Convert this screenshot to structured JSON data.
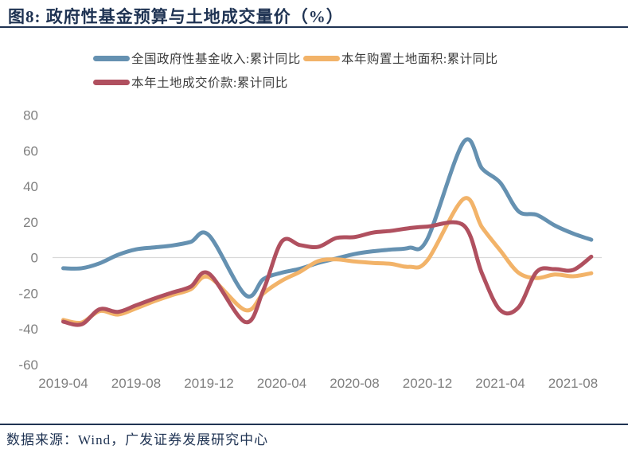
{
  "figure": {
    "title": "图8:  政府性基金预算与土地成交量价（%）",
    "source": "数据来源：Wind，广发证券发展研究中心"
  },
  "colors": {
    "navy": "#1F3353",
    "axis_gray": "#7F7F7F",
    "grid_gray": "#D9D9D9",
    "legend_text": "#3E3E3E",
    "series_blue": "#6591B1",
    "series_orange": "#F2B369",
    "series_red": "#B0505F"
  },
  "chart_data": {
    "type": "line",
    "title": "政府性基金预算与土地成交量价（%）",
    "x": [
      "2019-04",
      "2019-05",
      "2019-06",
      "2019-07",
      "2019-08",
      "2019-09",
      "2019-10",
      "2019-11",
      "2019-12",
      "2020-01",
      "2020-02",
      "2020-03",
      "2020-04",
      "2020-05",
      "2020-06",
      "2020-07",
      "2020-08",
      "2020-09",
      "2020-10",
      "2020-11",
      "2020-12",
      "2021-01",
      "2021-02",
      "2021-03",
      "2021-04",
      "2021-05",
      "2021-06",
      "2021-07",
      "2021-08",
      "2021-09"
    ],
    "series": [
      {
        "name": "全国政府性基金收入:累计同比",
        "color_key": "series_blue",
        "values": [
          -6,
          -6,
          -3.2,
          1.5,
          4.6,
          5.7,
          6.8,
          8.8,
          12.5,
          null,
          -21,
          -12,
          -8.5,
          -6.3,
          -3,
          -0.5,
          2,
          3.5,
          4.5,
          5.5,
          10.5,
          null,
          65,
          50,
          42,
          26,
          24,
          18,
          13.5,
          10
        ]
      },
      {
        "name": "本年购置土地面积:累计同比",
        "color_key": "series_orange",
        "values": [
          -35,
          -36.5,
          -30,
          -32,
          -28.5,
          -24.5,
          -21,
          -17.8,
          -11,
          null,
          -29.5,
          -20,
          -13,
          -8,
          -2,
          -1,
          -2.2,
          -3,
          -3.5,
          -5.2,
          -1.5,
          null,
          33,
          17,
          4,
          -8.5,
          -11.5,
          -9.5,
          -10.5,
          -8.8
        ]
      },
      {
        "name": "本年土地成交价款:累计同比",
        "color_key": "series_red",
        "values": [
          -36,
          -37.5,
          -29,
          -30.5,
          -26.8,
          -23,
          -19.6,
          -16.3,
          -9,
          null,
          -36.2,
          -18,
          9,
          7,
          6,
          11,
          11.5,
          14,
          15,
          16.5,
          17.4,
          null,
          18,
          -9,
          -29.5,
          -28,
          -8,
          -6.5,
          -7,
          0.5
        ]
      }
    ],
    "y_ticks": [
      80,
      60,
      40,
      20,
      0,
      -20,
      -40,
      -60
    ],
    "x_tick_labels": [
      "2019-04",
      "2019-08",
      "2019-12",
      "2020-04",
      "2020-08",
      "2020-12",
      "2021-04",
      "2021-08"
    ],
    "ylim": [
      -60,
      80
    ],
    "grid": "zero-line-only",
    "legend_position": "top-left",
    "smoothing": "spline"
  }
}
